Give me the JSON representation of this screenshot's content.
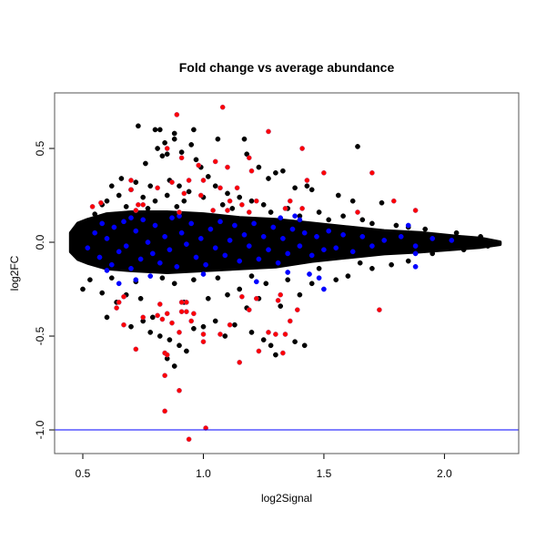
{
  "chart_data": {
    "type": "scatter",
    "title": "Fold change vs average abundance",
    "xlabel": "log2Signal",
    "ylabel": "log2FC",
    "xlim": [
      0.383,
      2.308
    ],
    "ylim": [
      -1.126,
      0.796
    ],
    "xticks": [
      0.5,
      1.0,
      1.5,
      2.0
    ],
    "xtick_labels": [
      "0.5",
      "1.0",
      "1.5",
      "2.0"
    ],
    "yticks": [
      -1.0,
      -0.5,
      0.0,
      0.5
    ],
    "ytick_labels": [
      "-1.0",
      "-0.5",
      "0.0",
      "0.5"
    ],
    "grid": false,
    "hline": {
      "y": -1.0,
      "color": "#0000ff"
    },
    "colors": {
      "background": "#000000",
      "highlight": "#0000ff",
      "significant": "#ff0000"
    },
    "dense_core_envelope": [
      [
        0.45,
        -0.05,
        0.05
      ],
      [
        0.48,
        -0.09,
        0.1
      ],
      [
        0.52,
        -0.11,
        0.12
      ],
      [
        0.6,
        -0.14,
        0.15
      ],
      [
        0.7,
        -0.15,
        0.16
      ],
      [
        0.85,
        -0.16,
        0.16
      ],
      [
        1.0,
        -0.15,
        0.15
      ],
      [
        1.15,
        -0.14,
        0.13
      ],
      [
        1.3,
        -0.13,
        0.12
      ],
      [
        1.45,
        -0.1,
        0.1
      ],
      [
        1.6,
        -0.08,
        0.08
      ],
      [
        1.75,
        -0.06,
        0.06
      ],
      [
        1.9,
        -0.05,
        0.05
      ],
      [
        2.05,
        -0.035,
        0.03
      ],
      [
        2.15,
        -0.025,
        0.02
      ],
      [
        2.23,
        -0.01,
        0.0
      ]
    ],
    "series": [
      {
        "color": "#000000",
        "points": [
          [
            0.73,
            0.62
          ],
          [
            0.8,
            0.6
          ],
          [
            0.82,
            0.6
          ],
          [
            0.96,
            0.6
          ],
          [
            0.88,
            0.58
          ],
          [
            1.06,
            0.55
          ],
          [
            1.17,
            0.55
          ],
          [
            0.95,
            0.52
          ],
          [
            0.88,
            0.55
          ],
          [
            0.81,
            0.5
          ],
          [
            0.84,
            0.53
          ],
          [
            0.91,
            0.48
          ],
          [
            0.85,
            0.47
          ],
          [
            0.76,
            0.42
          ],
          [
            0.83,
            0.46
          ],
          [
            0.97,
            0.44
          ],
          [
            0.99,
            0.4
          ],
          [
            1.02,
            0.35
          ],
          [
            1.64,
            0.51
          ],
          [
            1.18,
            0.47
          ],
          [
            1.23,
            0.4
          ],
          [
            1.3,
            0.37
          ],
          [
            1.27,
            0.34
          ],
          [
            1.33,
            0.38
          ],
          [
            1.38,
            0.29
          ],
          [
            1.43,
            0.3
          ],
          [
            1.62,
            0.22
          ],
          [
            1.74,
            0.21
          ],
          [
            1.45,
            0.28
          ],
          [
            1.56,
            0.25
          ],
          [
            0.62,
            0.3
          ],
          [
            0.66,
            0.34
          ],
          [
            0.58,
            0.2
          ],
          [
            0.55,
            0.15
          ],
          [
            0.7,
            0.28
          ],
          [
            0.72,
            0.32
          ],
          [
            0.78,
            0.3
          ],
          [
            0.86,
            0.33
          ],
          [
            0.9,
            0.3
          ],
          [
            0.94,
            0.27
          ],
          [
            1.05,
            0.3
          ],
          [
            1.1,
            0.26
          ],
          [
            1.15,
            0.24
          ],
          [
            1.2,
            0.22
          ],
          [
            1.25,
            0.2
          ],
          [
            0.6,
            0.22
          ],
          [
            0.65,
            0.25
          ],
          [
            0.75,
            0.24
          ],
          [
            0.8,
            0.22
          ],
          [
            0.85,
            0.25
          ],
          [
            0.92,
            0.22
          ],
          [
            1.0,
            0.24
          ],
          [
            1.08,
            0.2
          ],
          [
            1.35,
            0.18
          ],
          [
            1.48,
            0.16
          ],
          [
            1.58,
            0.14
          ],
          [
            1.66,
            0.12
          ],
          [
            1.8,
            0.09
          ],
          [
            1.92,
            0.07
          ],
          [
            2.05,
            0.05
          ],
          [
            2.15,
            0.03
          ],
          [
            0.68,
            0.19
          ],
          [
            0.77,
            0.18
          ],
          [
            0.89,
            0.19
          ],
          [
            1.12,
            0.18
          ],
          [
            1.28,
            0.16
          ],
          [
            1.4,
            0.14
          ],
          [
            1.52,
            0.12
          ],
          [
            1.7,
            0.1
          ],
          [
            1.85,
            0.08
          ],
          [
            0.5,
            -0.25
          ],
          [
            0.58,
            -0.27
          ],
          [
            0.53,
            -0.2
          ],
          [
            0.64,
            -0.32
          ],
          [
            0.6,
            -0.4
          ],
          [
            0.7,
            -0.45
          ],
          [
            0.75,
            -0.42
          ],
          [
            0.78,
            -0.48
          ],
          [
            0.82,
            -0.5
          ],
          [
            0.86,
            -0.52
          ],
          [
            0.9,
            -0.55
          ],
          [
            0.93,
            -0.58
          ],
          [
            0.85,
            -0.62
          ],
          [
            0.88,
            -0.66
          ],
          [
            0.79,
            -0.4
          ],
          [
            0.96,
            -0.46
          ],
          [
            1.0,
            -0.45
          ],
          [
            1.05,
            -0.42
          ],
          [
            1.09,
            -0.5
          ],
          [
            1.13,
            -0.44
          ],
          [
            1.2,
            -0.48
          ],
          [
            1.25,
            -0.52
          ],
          [
            1.28,
            -0.55
          ],
          [
            1.3,
            -0.6
          ],
          [
            1.38,
            -0.53
          ],
          [
            1.42,
            -0.55
          ],
          [
            1.18,
            -0.35
          ],
          [
            1.23,
            -0.3
          ],
          [
            1.32,
            -0.34
          ],
          [
            1.4,
            -0.28
          ],
          [
            1.45,
            -0.22
          ],
          [
            1.55,
            -0.2
          ],
          [
            1.6,
            -0.18
          ],
          [
            1.7,
            -0.14
          ],
          [
            1.78,
            -0.12
          ],
          [
            1.85,
            -0.1
          ],
          [
            1.95,
            -0.06
          ],
          [
            2.08,
            -0.04
          ],
          [
            2.18,
            -0.02
          ],
          [
            0.68,
            -0.28
          ],
          [
            0.74,
            -0.3
          ],
          [
            0.92,
            -0.32
          ],
          [
            1.02,
            -0.3
          ],
          [
            1.1,
            -0.28
          ],
          [
            1.15,
            -0.25
          ],
          [
            0.88,
            -0.22
          ],
          [
            0.96,
            -0.2
          ],
          [
            1.26,
            -0.22
          ],
          [
            1.35,
            -0.2
          ],
          [
            0.62,
            -0.19
          ],
          [
            0.72,
            -0.21
          ],
          [
            0.83,
            -0.19
          ],
          [
            1.06,
            -0.19
          ],
          [
            1.2,
            -0.18
          ],
          [
            1.48,
            -0.14
          ],
          [
            1.65,
            -0.11
          ],
          [
            2.2,
            -0.01
          ],
          [
            2.12,
            0.01
          ],
          [
            2.0,
            0.02
          ],
          [
            1.98,
            -0.03
          ]
        ]
      },
      {
        "color": "#0000ff",
        "points": [
          [
            0.52,
            -0.03
          ],
          [
            0.55,
            0.05
          ],
          [
            0.57,
            -0.08
          ],
          [
            0.6,
            0.02
          ],
          [
            0.62,
            -0.12
          ],
          [
            0.63,
            0.08
          ],
          [
            0.65,
            -0.05
          ],
          [
            0.67,
            0.11
          ],
          [
            0.68,
            -0.02
          ],
          [
            0.7,
            -0.14
          ],
          [
            0.72,
            0.06
          ],
          [
            0.74,
            -0.09
          ],
          [
            0.75,
            0.12
          ],
          [
            0.77,
            0.0
          ],
          [
            0.79,
            -0.06
          ],
          [
            0.8,
            0.09
          ],
          [
            0.82,
            -0.11
          ],
          [
            0.84,
            0.03
          ],
          [
            0.86,
            -0.04
          ],
          [
            0.87,
            0.13
          ],
          [
            0.89,
            -0.13
          ],
          [
            0.91,
            0.05
          ],
          [
            0.93,
            -0.01
          ],
          [
            0.95,
            0.1
          ],
          [
            0.97,
            -0.08
          ],
          [
            0.99,
            0.02
          ],
          [
            1.01,
            -0.12
          ],
          [
            1.03,
            0.07
          ],
          [
            1.05,
            -0.03
          ],
          [
            1.07,
            0.11
          ],
          [
            1.09,
            -0.07
          ],
          [
            1.11,
            0.01
          ],
          [
            1.13,
            0.09
          ],
          [
            1.15,
            -0.1
          ],
          [
            1.17,
            0.04
          ],
          [
            1.19,
            -0.02
          ],
          [
            1.21,
            0.1
          ],
          [
            1.23,
            -0.09
          ],
          [
            1.25,
            0.03
          ],
          [
            1.27,
            -0.04
          ],
          [
            1.29,
            0.08
          ],
          [
            1.31,
            -0.11
          ],
          [
            1.33,
            0.02
          ],
          [
            1.35,
            -0.06
          ],
          [
            1.37,
            0.07
          ],
          [
            1.4,
            -0.02
          ],
          [
            1.42,
            0.05
          ],
          [
            1.45,
            -0.07
          ],
          [
            1.47,
            0.03
          ],
          [
            1.5,
            -0.04
          ],
          [
            1.52,
            0.06
          ],
          [
            1.55,
            -0.03
          ],
          [
            1.58,
            0.04
          ],
          [
            1.62,
            -0.05
          ],
          [
            1.66,
            0.03
          ],
          [
            1.7,
            -0.02
          ],
          [
            1.75,
            0.01
          ],
          [
            1.82,
            0.03
          ],
          [
            1.88,
            -0.02
          ],
          [
            1.95,
            0.02
          ],
          [
            2.03,
            0.01
          ],
          [
            1.5,
            -0.25
          ],
          [
            1.48,
            -0.19
          ],
          [
            1.44,
            -0.17
          ],
          [
            1.88,
            -0.13
          ],
          [
            1.88,
            -0.06
          ],
          [
            1.85,
            0.09
          ],
          [
            1.4,
            0.12
          ],
          [
            1.38,
            0.14
          ],
          [
            1.32,
            0.13
          ],
          [
            0.6,
            -0.15
          ],
          [
            0.65,
            -0.22
          ],
          [
            0.72,
            -0.2
          ],
          [
            0.78,
            -0.18
          ],
          [
            1.0,
            -0.17
          ],
          [
            1.22,
            -0.21
          ],
          [
            1.35,
            -0.16
          ],
          [
            0.58,
            0.1
          ],
          [
            0.7,
            0.13
          ],
          [
            0.9,
            0.14
          ]
        ]
      },
      {
        "color": "#ff0000",
        "points": [
          [
            1.08,
            0.72
          ],
          [
            0.89,
            0.68
          ],
          [
            1.27,
            0.59
          ],
          [
            1.41,
            0.5
          ],
          [
            0.85,
            0.5
          ],
          [
            0.91,
            0.45
          ],
          [
            1.05,
            0.43
          ],
          [
            1.19,
            0.45
          ],
          [
            1.1,
            0.4
          ],
          [
            1.2,
            0.38
          ],
          [
            0.98,
            0.41
          ],
          [
            1.5,
            0.37
          ],
          [
            1.7,
            0.37
          ],
          [
            1.43,
            0.33
          ],
          [
            0.7,
            0.33
          ],
          [
            0.87,
            0.32
          ],
          [
            0.94,
            0.33
          ],
          [
            1.0,
            0.33
          ],
          [
            0.81,
            0.29
          ],
          [
            1.07,
            0.29
          ],
          [
            1.14,
            0.29
          ],
          [
            0.92,
            0.26
          ],
          [
            0.99,
            0.25
          ],
          [
            0.7,
            0.28
          ],
          [
            0.575,
            0.21
          ],
          [
            0.54,
            0.19
          ],
          [
            0.73,
            0.2
          ],
          [
            0.75,
            0.2
          ],
          [
            0.72,
            0.17
          ],
          [
            0.9,
            0.16
          ],
          [
            1.04,
            0.17
          ],
          [
            1.11,
            0.22
          ],
          [
            1.1,
            0.17
          ],
          [
            1.16,
            0.2
          ],
          [
            1.19,
            0.16
          ],
          [
            1.22,
            0.22
          ],
          [
            1.34,
            0.18
          ],
          [
            1.36,
            0.22
          ],
          [
            1.41,
            0.18
          ],
          [
            1.79,
            0.22
          ],
          [
            1.88,
            0.17
          ],
          [
            1.64,
            0.16
          ],
          [
            0.67,
            -0.29
          ],
          [
            0.65,
            -0.32
          ],
          [
            0.64,
            -0.35
          ],
          [
            0.75,
            -0.4
          ],
          [
            0.67,
            -0.44
          ],
          [
            0.72,
            -0.57
          ],
          [
            0.82,
            -0.33
          ],
          [
            0.81,
            -0.39
          ],
          [
            0.83,
            -0.41
          ],
          [
            0.85,
            -0.38
          ],
          [
            0.87,
            -0.43
          ],
          [
            0.91,
            -0.32
          ],
          [
            0.93,
            -0.32
          ],
          [
            0.91,
            -0.37
          ],
          [
            0.93,
            -0.37
          ],
          [
            0.96,
            -0.38
          ],
          [
            0.95,
            -0.42
          ],
          [
            0.9,
            -0.48
          ],
          [
            1.0,
            -0.49
          ],
          [
            1.0,
            -0.53
          ],
          [
            0.84,
            -0.59
          ],
          [
            0.85,
            -0.6
          ],
          [
            0.84,
            -0.71
          ],
          [
            0.9,
            -0.79
          ],
          [
            0.84,
            -0.9
          ],
          [
            1.01,
            -0.99
          ],
          [
            0.94,
            -1.05
          ],
          [
            1.11,
            -0.44
          ],
          [
            1.07,
            -0.49
          ],
          [
            1.15,
            -0.64
          ],
          [
            1.16,
            -0.29
          ],
          [
            1.22,
            -0.3
          ],
          [
            1.19,
            -0.36
          ],
          [
            1.32,
            -0.28
          ],
          [
            1.31,
            -0.31
          ],
          [
            1.27,
            -0.48
          ],
          [
            1.3,
            -0.49
          ],
          [
            1.34,
            -0.49
          ],
          [
            1.23,
            -0.58
          ],
          [
            1.33,
            -0.59
          ],
          [
            1.36,
            -0.42
          ],
          [
            1.39,
            -0.36
          ],
          [
            1.73,
            -0.36
          ]
        ]
      }
    ]
  }
}
